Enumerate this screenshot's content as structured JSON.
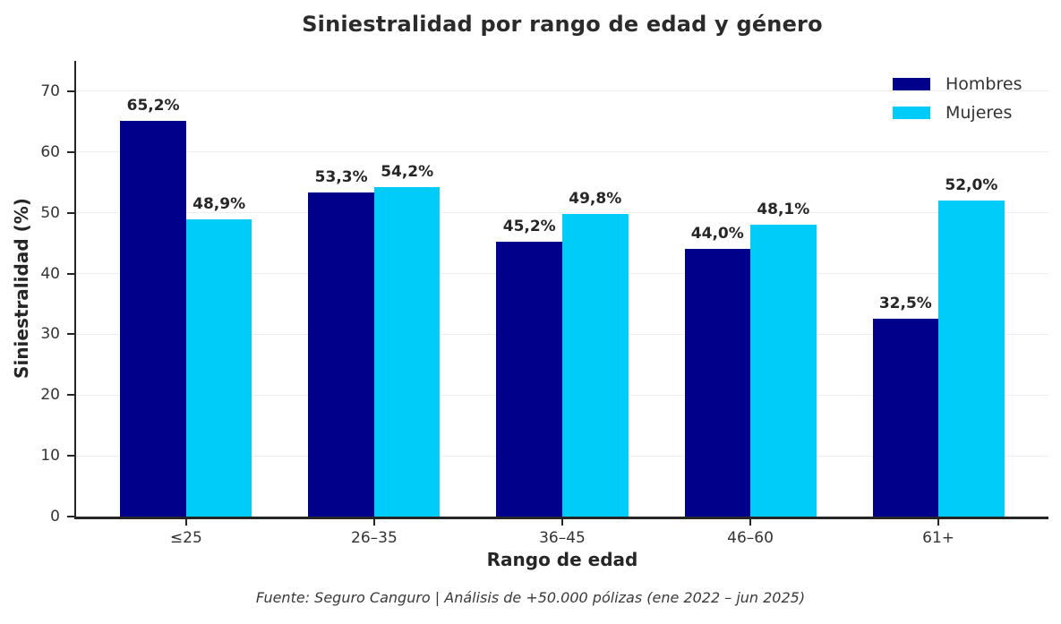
{
  "title": "Siniestralidad por rango de edad y género",
  "footer": "Fuente: Seguro Canguro | Análisis de +50.000 pólizas (ene 2022 – jun 2025)",
  "colors": {
    "hombres": "#00008B",
    "mujeres": "#00CCFA",
    "axis": "#262626",
    "grid": "#eeeeee",
    "background": "#ffffff"
  },
  "chart_data": {
    "type": "bar",
    "categories": [
      "≤25",
      "26–35",
      "36–45",
      "46–60",
      "61+"
    ],
    "series": [
      {
        "name": "Hombres",
        "color": "#00008B",
        "values": [
          65.2,
          53.3,
          45.2,
          44.0,
          32.5
        ],
        "labels": [
          "65,2%",
          "53,3%",
          "45,2%",
          "44,0%",
          "32,5%"
        ]
      },
      {
        "name": "Mujeres",
        "color": "#00CCFA",
        "values": [
          48.9,
          54.2,
          49.8,
          48.1,
          52.0
        ],
        "labels": [
          "48,9%",
          "54,2%",
          "49,8%",
          "48,1%",
          "52,0%"
        ]
      }
    ],
    "title": "Siniestralidad por rango de edad y género",
    "xlabel": "Rango de edad",
    "ylabel": "Siniestralidad (%)",
    "ylim": [
      0,
      75
    ],
    "yticks": [
      0,
      10,
      20,
      30,
      40,
      50,
      60,
      70
    ],
    "grid": true,
    "legend_position": "upper right",
    "bar_width_fraction": 0.35
  }
}
